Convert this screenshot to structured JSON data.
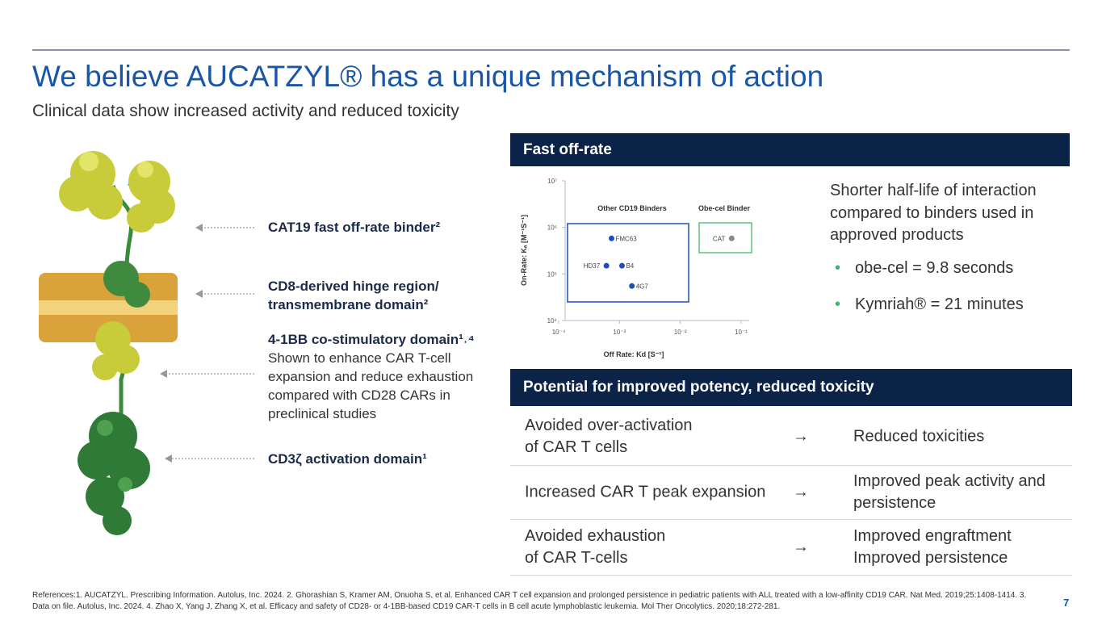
{
  "header": {
    "title": "We believe AUCATZYL® has a unique mechanism of action",
    "subtitle": "Clinical data show increased activity and reduced toxicity"
  },
  "diagram": {
    "labels": [
      {
        "heading": "CAT19 fast off-rate binder²"
      },
      {
        "heading": "CD8-derived hinge region/ transmembrane domain²"
      },
      {
        "heading": "4-1BB co-stimulatory domain¹˒⁴",
        "text": "Shown to enhance CAR T-cell expansion and reduce exhaustion compared with CD28 CARs in preclinical studies"
      },
      {
        "heading": "CD3ζ activation domain¹"
      }
    ]
  },
  "offrate_panel": {
    "header": "Fast off-rate",
    "text": "Shorter half-life of interaction compared to binders used in approved products",
    "bullets": [
      "obe-cel = 9.8 seconds",
      "Kymriah® = 21 minutes"
    ]
  },
  "chart_data": {
    "type": "scatter",
    "xlabel": "Off Rate: Kd [S⁻¹]",
    "ylabel": "On-Rate: Kₐ [M⁻¹S⁻¹]",
    "log_x": true,
    "log_y": true,
    "xlim": [
      0.0001,
      0.1
    ],
    "ylim": [
      10000,
      10000000
    ],
    "xticks": [
      {
        "value": 0.0001,
        "label": "10⁻⁴"
      },
      {
        "value": 0.001,
        "label": "10⁻³"
      },
      {
        "value": 0.01,
        "label": "10⁻²"
      },
      {
        "value": 0.1,
        "label": "10⁻¹"
      }
    ],
    "yticks": [
      {
        "value": 10000,
        "label": "10⁴"
      },
      {
        "value": 100000,
        "label": "10⁵"
      },
      {
        "value": 1000000,
        "label": "10⁶"
      },
      {
        "value": 10000000,
        "label": "10⁷"
      }
    ],
    "series": [
      {
        "name": "Other CD19 Binders",
        "color": "#1f4fb5",
        "x": [
          0.00074,
          0.00061,
          0.0011,
          0.0016
        ],
        "values": [
          580000,
          150000,
          150000,
          55000
        ],
        "point_labels": [
          "FMC63",
          "HD37",
          "B4",
          "4G7"
        ]
      },
      {
        "name": "Obe-cel Binder",
        "color": "#8a8a8a",
        "x": [
          0.07
        ],
        "values": [
          580000
        ],
        "point_labels": [
          "CAT"
        ]
      }
    ]
  },
  "table": {
    "header": "Potential for improved potency, reduced toxicity",
    "rows": [
      [
        "Avoided over-activation\nof CAR T cells",
        "→",
        "Reduced toxicities"
      ],
      [
        "Increased CAR T peak expansion",
        "→",
        "Improved peak activity and persistence"
      ],
      [
        "Avoided exhaustion\nof CAR T-cells",
        "→",
        "Improved engraftment\nImproved persistence"
      ]
    ]
  },
  "footer": {
    "references": "References:1. AUCATZYL. Prescribing Information. Autolus, Inc. 2024. 2. Ghorashian S, Kramer AM, Onuoha S, et al. Enhanced CAR T cell expansion and prolonged persistence in pediatric patients with ALL treated with a low-affinity CD19 CAR. Nat Med. 2019;25:1408-1414. 3. Data on file. Autolus, Inc. 2024. 4. Zhao X, Yang J, Zhang X, et al. Efficacy and safety of CD28- or 4-1BB-based CD19 CAR-T cells in B cell acute lymphoblastic leukemia. Mol Ther Oncolytics. 2020;18:272-281.",
    "page_number": "7"
  }
}
